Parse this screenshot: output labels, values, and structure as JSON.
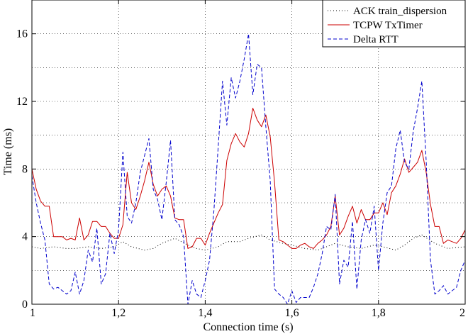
{
  "chart_data": {
    "type": "line",
    "title": "",
    "xlabel": "Connection time (s)",
    "ylabel": "Time (ms)",
    "xlim": [
      1,
      2
    ],
    "ylim": [
      0,
      18
    ],
    "xticks": [
      1,
      1.2,
      1.4,
      1.6,
      1.8,
      2
    ],
    "xtick_labels": [
      "1",
      "1,2",
      "1,4",
      "1,6",
      "1,8",
      "2"
    ],
    "yticks": [
      0,
      4,
      8,
      12,
      16
    ],
    "ytick_labels": [
      "0",
      "4",
      "8",
      "12",
      "16"
    ],
    "grid": true,
    "legend_position": "top-right",
    "series": [
      {
        "name": "ACK train_dispersion",
        "color": "#000000",
        "dash": "dotted",
        "x": [
          1.0,
          1.02,
          1.05,
          1.08,
          1.1,
          1.13,
          1.16,
          1.19,
          1.21,
          1.23,
          1.26,
          1.28,
          1.3,
          1.33,
          1.36,
          1.38,
          1.4,
          1.43,
          1.45,
          1.48,
          1.5,
          1.53,
          1.55,
          1.58,
          1.6,
          1.63,
          1.66,
          1.68,
          1.7,
          1.73,
          1.76,
          1.79,
          1.81,
          1.84,
          1.86,
          1.88,
          1.9,
          1.93,
          1.96,
          2.0
        ],
        "y": [
          3.4,
          3.3,
          3.4,
          3.3,
          3.3,
          3.4,
          3.3,
          3.4,
          3.7,
          3.4,
          3.2,
          3.3,
          3.6,
          3.9,
          3.5,
          3.3,
          3.2,
          3.4,
          3.7,
          3.7,
          3.9,
          4.1,
          3.8,
          3.6,
          3.5,
          3.3,
          3.2,
          3.4,
          3.6,
          3.4,
          3.3,
          3.5,
          3.4,
          3.2,
          3.5,
          3.9,
          4.1,
          3.6,
          3.3,
          3.4
        ]
      },
      {
        "name": "TCPW TxTimer",
        "color": "#cc0000",
        "dash": "solid",
        "x": [
          1.0,
          1.01,
          1.02,
          1.03,
          1.04,
          1.05,
          1.06,
          1.07,
          1.08,
          1.09,
          1.1,
          1.11,
          1.12,
          1.13,
          1.14,
          1.15,
          1.16,
          1.17,
          1.18,
          1.19,
          1.2,
          1.21,
          1.22,
          1.23,
          1.24,
          1.25,
          1.26,
          1.27,
          1.28,
          1.29,
          1.3,
          1.31,
          1.32,
          1.33,
          1.34,
          1.35,
          1.36,
          1.37,
          1.38,
          1.39,
          1.4,
          1.41,
          1.42,
          1.43,
          1.44,
          1.45,
          1.46,
          1.47,
          1.48,
          1.49,
          1.5,
          1.51,
          1.52,
          1.53,
          1.54,
          1.55,
          1.56,
          1.57,
          1.58,
          1.59,
          1.6,
          1.61,
          1.62,
          1.63,
          1.64,
          1.65,
          1.66,
          1.67,
          1.68,
          1.69,
          1.7,
          1.71,
          1.72,
          1.73,
          1.74,
          1.75,
          1.76,
          1.77,
          1.78,
          1.79,
          1.8,
          1.81,
          1.82,
          1.83,
          1.84,
          1.85,
          1.86,
          1.87,
          1.88,
          1.89,
          1.9,
          1.91,
          1.92,
          1.93,
          1.94,
          1.95,
          1.96,
          1.97,
          1.98,
          1.99,
          2.0
        ],
        "y": [
          8.0,
          6.8,
          6.1,
          5.8,
          5.8,
          4.0,
          4.0,
          4.0,
          3.8,
          3.9,
          3.8,
          5.1,
          3.8,
          4.1,
          4.9,
          4.9,
          4.6,
          4.6,
          4.2,
          3.9,
          3.9,
          4.7,
          7.8,
          6.0,
          5.6,
          6.4,
          7.3,
          8.4,
          7.1,
          6.4,
          6.8,
          7.0,
          6.4,
          5.1,
          5.0,
          5.0,
          3.3,
          3.4,
          3.9,
          3.9,
          3.5,
          4.2,
          4.8,
          5.4,
          5.9,
          8.5,
          9.5,
          10.1,
          9.6,
          9.3,
          10.1,
          11.6,
          10.9,
          10.5,
          11.2,
          9.9,
          7.2,
          3.8,
          3.7,
          3.5,
          3.3,
          3.3,
          3.5,
          3.6,
          3.4,
          3.3,
          3.6,
          3.8,
          4.1,
          4.6,
          6.4,
          4.1,
          4.5,
          5.2,
          5.8,
          4.8,
          5.6,
          5.0,
          5.0,
          5.4,
          5.4,
          6.0,
          5.3,
          6.6,
          7.0,
          7.7,
          8.6,
          7.8,
          8.1,
          8.4,
          9.1,
          7.8,
          5.9,
          4.6,
          4.6,
          3.6,
          3.8,
          3.7,
          3.6,
          3.9,
          4.4
        ]
      },
      {
        "name": "Delta RTT",
        "color": "#0000cc",
        "dash": "dashed",
        "x": [
          1.0,
          1.01,
          1.02,
          1.03,
          1.04,
          1.05,
          1.06,
          1.07,
          1.08,
          1.09,
          1.1,
          1.11,
          1.12,
          1.13,
          1.14,
          1.15,
          1.16,
          1.17,
          1.18,
          1.19,
          1.2,
          1.21,
          1.22,
          1.23,
          1.24,
          1.25,
          1.26,
          1.27,
          1.28,
          1.29,
          1.3,
          1.31,
          1.32,
          1.33,
          1.34,
          1.35,
          1.36,
          1.37,
          1.38,
          1.39,
          1.4,
          1.41,
          1.42,
          1.43,
          1.44,
          1.45,
          1.46,
          1.47,
          1.48,
          1.49,
          1.5,
          1.51,
          1.52,
          1.53,
          1.54,
          1.55,
          1.56,
          1.57,
          1.58,
          1.59,
          1.6,
          1.61,
          1.62,
          1.63,
          1.64,
          1.65,
          1.66,
          1.67,
          1.68,
          1.69,
          1.7,
          1.71,
          1.72,
          1.73,
          1.74,
          1.75,
          1.76,
          1.77,
          1.78,
          1.79,
          1.8,
          1.81,
          1.82,
          1.83,
          1.84,
          1.85,
          1.86,
          1.87,
          1.88,
          1.89,
          1.9,
          1.91,
          1.92,
          1.93,
          1.94,
          1.95,
          1.96,
          1.97,
          1.98,
          1.99,
          2.0
        ],
        "y": [
          7.6,
          6.0,
          4.8,
          3.8,
          1.2,
          0.9,
          1.0,
          0.8,
          0.6,
          0.8,
          1.9,
          0.6,
          1.4,
          3.2,
          2.5,
          4.5,
          1.2,
          1.8,
          4.2,
          3.0,
          4.4,
          9.0,
          5.2,
          4.8,
          6.0,
          7.8,
          8.8,
          9.8,
          6.8,
          6.2,
          5.0,
          7.2,
          9.7,
          5.0,
          4.7,
          4.0,
          0.0,
          1.4,
          0.6,
          0.4,
          1.4,
          2.6,
          5.5,
          9.3,
          13.2,
          10.6,
          13.4,
          12.2,
          13.2,
          14.5,
          16.0,
          12.4,
          14.2,
          14.0,
          10.5,
          7.3,
          0.9,
          0.6,
          0.4,
          0.0,
          0.8,
          0.1,
          0.4,
          0.4,
          0.4,
          1.0,
          1.8,
          3.0,
          4.6,
          4.4,
          6.5,
          1.2,
          2.6,
          2.2,
          4.9,
          0.9,
          3.8,
          5.0,
          4.2,
          5.8,
          2.0,
          4.8,
          6.6,
          7.0,
          9.2,
          10.3,
          8.4,
          8.0,
          10.2,
          11.6,
          13.2,
          8.5,
          2.6,
          0.6,
          0.8,
          1.1,
          0.6,
          0.8,
          1.0,
          2.0,
          2.6
        ]
      }
    ]
  }
}
